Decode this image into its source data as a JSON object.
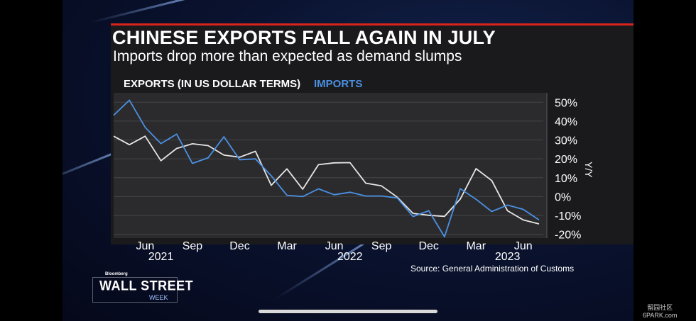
{
  "header": {
    "title": "CHINESE EXPORTS FALL AGAIN IN JULY",
    "subtitle": "Imports drop more than expected as demand slumps"
  },
  "legend": {
    "exports": "EXPORTS (IN US DOLLAR TERMS)",
    "imports": "IMPORTS"
  },
  "source": "Source: General Administration of Customs",
  "logo": {
    "brand": "Bloomberg",
    "show": "WALL STREET",
    "week": "WEEK"
  },
  "watermark": {
    "line1": "留园社区",
    "line2": "6PARK.com"
  },
  "colors": {
    "exports": "#e6e6e6",
    "imports": "#4a90e2",
    "accent_red": "#d9241c"
  },
  "chart_data": {
    "type": "line",
    "title": "CHINESE EXPORTS FALL AGAIN IN JULY",
    "subtitle": "Imports drop more than expected as demand slumps",
    "ylabel": "Y/Y",
    "ylim": [
      -22,
      55
    ],
    "yticks": [
      50,
      40,
      30,
      20,
      10,
      0,
      -10,
      -20
    ],
    "ytick_labels": [
      "50%",
      "40%",
      "30%",
      "20%",
      "10%",
      "0%",
      "-10%",
      "-20%"
    ],
    "y_axis_side": "right",
    "x_tick_labels": [
      "Jun",
      "Sep",
      "Dec",
      "Mar",
      "Jun",
      "Sep",
      "Dec",
      "Mar",
      "Jun"
    ],
    "x_tick_months": [
      "2021-06",
      "2021-09",
      "2021-12",
      "2022-03",
      "2022-06",
      "2022-09",
      "2022-12",
      "2023-03",
      "2023-06"
    ],
    "x_year_labels": [
      {
        "label": "2021",
        "month": "2021-07"
      },
      {
        "label": "2022",
        "month": "2022-07"
      },
      {
        "label": "2023",
        "month": "2023-05"
      }
    ],
    "x": [
      "2021-04",
      "2021-05",
      "2021-06",
      "2021-07",
      "2021-08",
      "2021-09",
      "2021-10",
      "2021-11",
      "2021-12",
      "2022-01",
      "2022-02",
      "2022-03",
      "2022-04",
      "2022-05",
      "2022-06",
      "2022-07",
      "2022-08",
      "2022-09",
      "2022-10",
      "2022-11",
      "2022-12",
      "2023-01",
      "2023-02",
      "2023-03",
      "2023-04",
      "2023-05",
      "2023-06",
      "2023-07"
    ],
    "series": [
      {
        "name": "EXPORTS (IN US DOLLAR TERMS)",
        "values": [
          32,
          27.5,
          32,
          19,
          25.5,
          28,
          27,
          22,
          20.9,
          24,
          6,
          14.7,
          3.9,
          16.9,
          17.9,
          18,
          7.1,
          5.7,
          -0.3,
          -8.9,
          -9.9,
          -10.5,
          -1.3,
          14.8,
          8.5,
          -7.5,
          -12.4,
          -14.5
        ]
      },
      {
        "name": "IMPORTS",
        "values": [
          43.1,
          51.1,
          36.7,
          28.1,
          33.1,
          17.6,
          20.6,
          31.7,
          19.5,
          20,
          11,
          0.7,
          0,
          4.1,
          1,
          2.3,
          0.3,
          0.3,
          -0.7,
          -10.6,
          -7.5,
          -21.3,
          4.2,
          -1.4,
          -7.9,
          -4.5,
          -6.8,
          -12.4
        ]
      }
    ],
    "grid": true,
    "legend_position": "top-left"
  }
}
